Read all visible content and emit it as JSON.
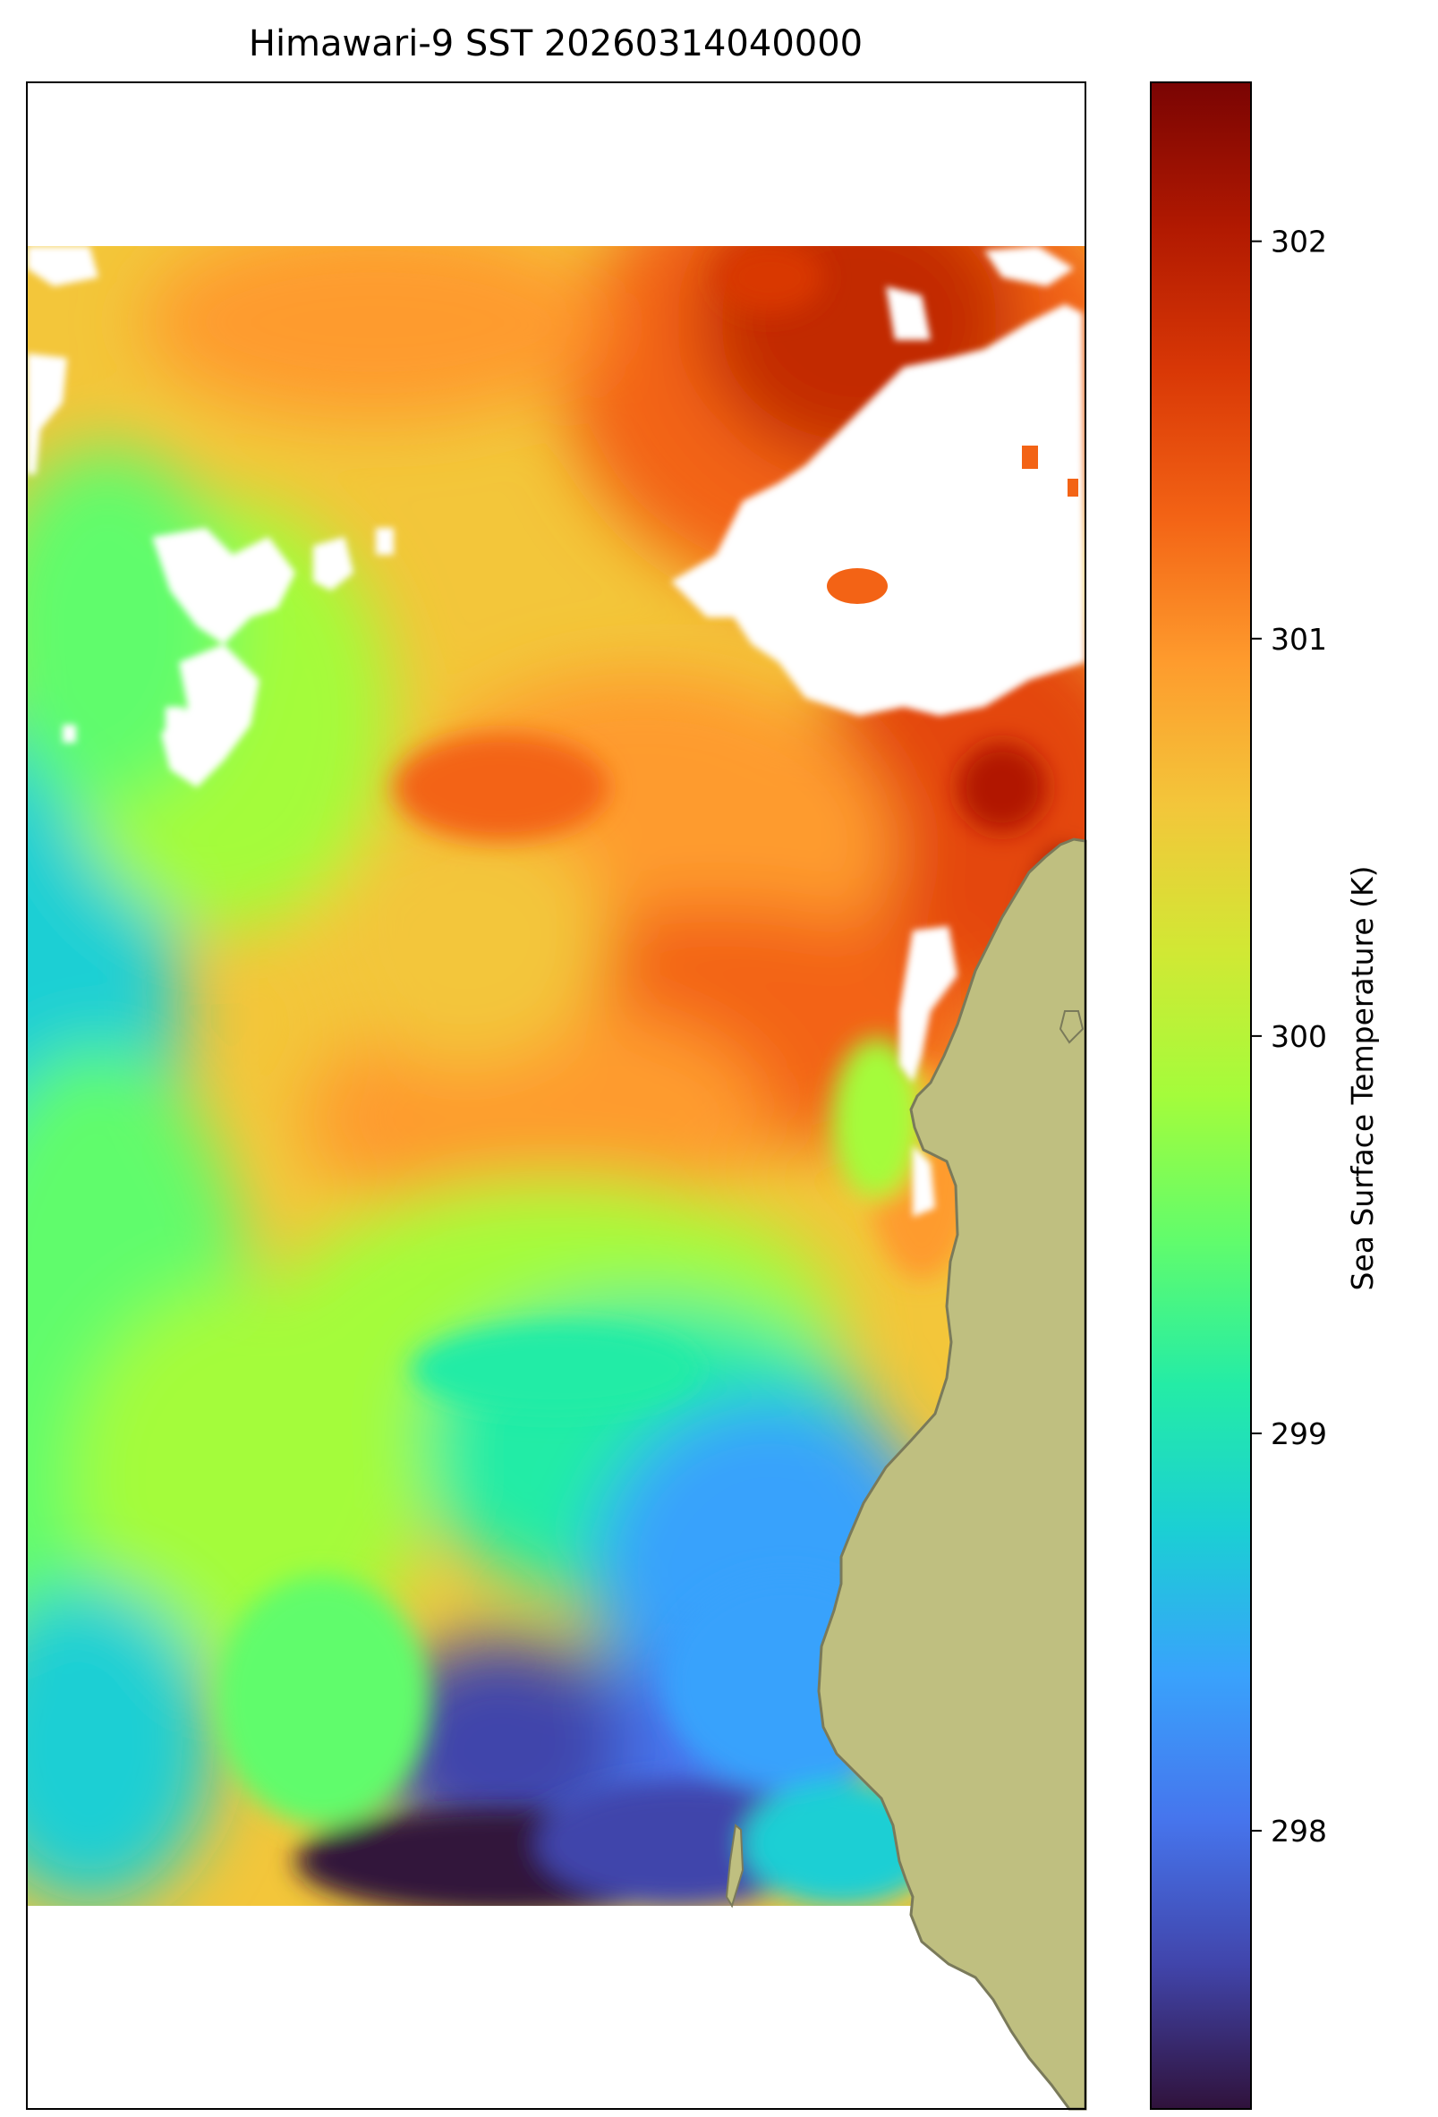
{
  "title": "Himawari-9 SST 20260314040000",
  "colorbar": {
    "label": "Sea Surface Temperature (K)",
    "vmin": 297.3,
    "vmax": 302.4,
    "ticks": [
      298,
      299,
      300,
      301,
      302
    ],
    "colormap": "turbo",
    "stops": [
      "#30123b",
      "#4145ab",
      "#4675ed",
      "#39a2fc",
      "#1bcfd4",
      "#24eca6",
      "#61fc6c",
      "#a4fc3b",
      "#d1e834",
      "#f3c63a",
      "#fe9b2d",
      "#f36315",
      "#d93806",
      "#b11901",
      "#7a0403"
    ]
  },
  "map": {
    "land_color": "#bfbf80",
    "coast_color": "#7a7a5a",
    "no_data_color": "#ffffff"
  }
}
